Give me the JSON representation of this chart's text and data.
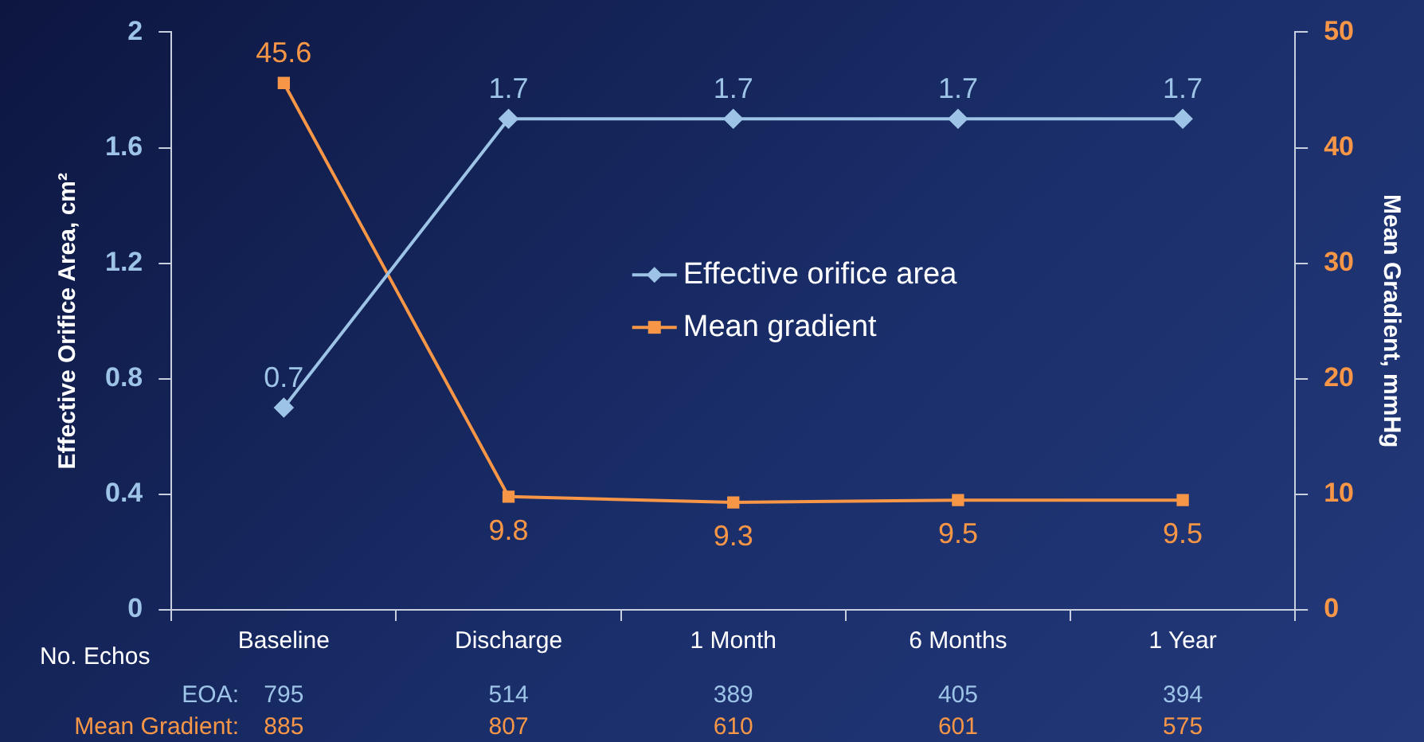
{
  "chart_data": {
    "type": "line",
    "categories": [
      "Baseline",
      "Discharge",
      "1 Month",
      "6 Months",
      "1 Year"
    ],
    "ylabel": "Effective Orifice Area, cm²",
    "y2label": "Mean Gradient, mmHg",
    "ylim": [
      0,
      2
    ],
    "yticks": [
      0,
      0.4,
      0.8,
      1.2,
      1.6,
      2
    ],
    "y2lim": [
      0,
      50
    ],
    "y2ticks": [
      0,
      10,
      20,
      30,
      40,
      50
    ],
    "series": [
      {
        "name": "Effective orifice area",
        "color": "#9dc3e6",
        "marker": "diamond",
        "values": [
          0.7,
          1.7,
          1.7,
          1.7,
          1.7
        ]
      },
      {
        "name": "Mean gradient",
        "color": "#f79646",
        "marker": "square",
        "axis": "y2",
        "values": [
          45.6,
          9.8,
          9.3,
          9.5,
          9.5
        ]
      }
    ],
    "data_labels": true,
    "legend": "center",
    "grid": false,
    "annotations": [
      "No. Echos",
      "EOA:",
      "795",
      "514",
      "389",
      "405",
      "394",
      "Mean Gradient:",
      "885",
      "807",
      "610",
      "601",
      "575"
    ]
  }
}
